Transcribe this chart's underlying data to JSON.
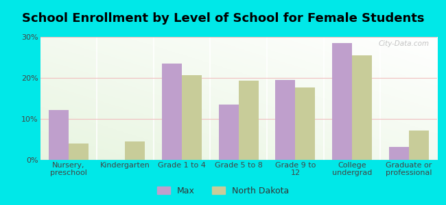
{
  "title": "School Enrollment by Level of School for Female Students",
  "categories": [
    "Nursery,\npreschool",
    "Kindergarten",
    "Grade 1 to 4",
    "Grade 5 to 8",
    "Grade 9 to\n12",
    "College\nundergrad",
    "Graduate or\nprofessional"
  ],
  "max_values": [
    12.2,
    0,
    23.5,
    13.5,
    19.5,
    28.5,
    3.2
  ],
  "nd_values": [
    4.0,
    4.5,
    20.7,
    19.3,
    17.7,
    25.5,
    7.2
  ],
  "max_color": "#bf9fcc",
  "nd_color": "#c8cc99",
  "background_color": "#00e8e8",
  "plot_bg_color": "#e8f5e0",
  "ylim": [
    0,
    30
  ],
  "yticks": [
    0,
    10,
    20,
    30
  ],
  "bar_width": 0.35,
  "legend_labels": [
    "Max",
    "North Dakota"
  ],
  "watermark": "City-Data.com",
  "title_fontsize": 13,
  "tick_fontsize": 8,
  "legend_fontsize": 9
}
